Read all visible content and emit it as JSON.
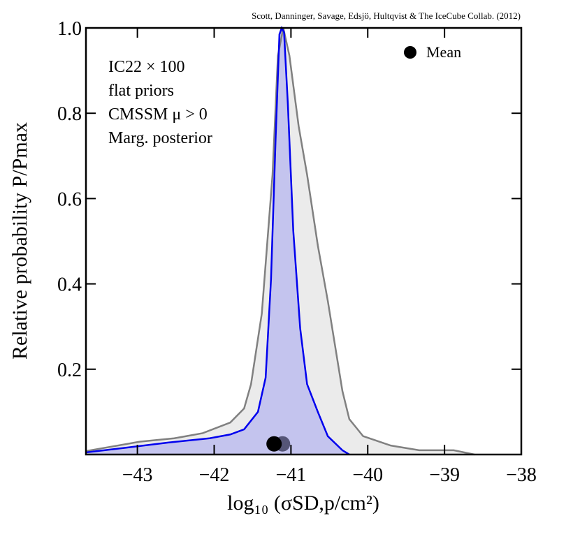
{
  "chart_data": {
    "type": "line",
    "credit": "Scott, Danninger, Savage, Edsjö, Hultqvist & The IceCube Collab. (2012)",
    "annotation": [
      "IC22 × 100",
      "flat priors",
      "CMSSM μ > 0",
      "Marg. posterior"
    ],
    "xlabel": "log₁₀ (σSD,p/cm²)",
    "ylabel": "Relative probability P/Pmax",
    "xlim": [
      -43.67,
      -38
    ],
    "ylim": [
      0,
      1
    ],
    "xticks": [
      {
        "value": -43,
        "label": "−43"
      },
      {
        "value": -42,
        "label": "−42"
      },
      {
        "value": -41,
        "label": "−41"
      },
      {
        "value": -40,
        "label": "−40"
      },
      {
        "value": -39,
        "label": "−39"
      },
      {
        "value": -38,
        "label": "−38"
      }
    ],
    "yticks": [
      0.2,
      0.4,
      0.6,
      0.8,
      {
        "value": 1,
        "label": "1.0"
      }
    ],
    "series": [
      {
        "color": "#808080",
        "fill": "#ebebeb",
        "x": [
          -43.67,
          -42.97,
          -42.52,
          -42.15,
          -41.79,
          -41.61,
          -41.52,
          -41.38,
          -41.24,
          -41.17,
          -41.1,
          -41.02,
          -40.9,
          -40.79,
          -40.65,
          -40.52,
          -40.33,
          -40.24,
          -40.06,
          -39.7,
          -39.33,
          -38.88,
          -38.61
        ],
        "values": [
          0.008,
          0.03,
          0.038,
          0.05,
          0.075,
          0.108,
          0.165,
          0.33,
          0.656,
          0.935,
          1.0,
          0.935,
          0.77,
          0.656,
          0.49,
          0.36,
          0.149,
          0.083,
          0.043,
          0.021,
          0.01,
          0.01,
          0
        ]
      },
      {
        "color": "#0000ee",
        "fill": "#c4c4ee",
        "x": [
          -43.67,
          -43.15,
          -42.6,
          -42.06,
          -41.79,
          -41.61,
          -41.43,
          -41.33,
          -41.26,
          -41.2,
          -41.15,
          -41.12,
          -41.09,
          -41.04,
          -40.97,
          -40.88,
          -40.79,
          -40.65,
          -40.52,
          -40.33,
          -40.24
        ],
        "values": [
          0.005,
          0.016,
          0.028,
          0.038,
          0.047,
          0.059,
          0.1,
          0.18,
          0.41,
          0.74,
          0.985,
          1.0,
          0.99,
          0.82,
          0.525,
          0.296,
          0.165,
          0.1,
          0.043,
          0.01,
          0
        ]
      }
    ],
    "markers": [
      {
        "x": -41.11,
        "y": 0.025,
        "color": "#555577"
      },
      {
        "x": -41.22,
        "y": 0.025,
        "color": "#000000"
      }
    ],
    "legend_label": "Mean"
  }
}
